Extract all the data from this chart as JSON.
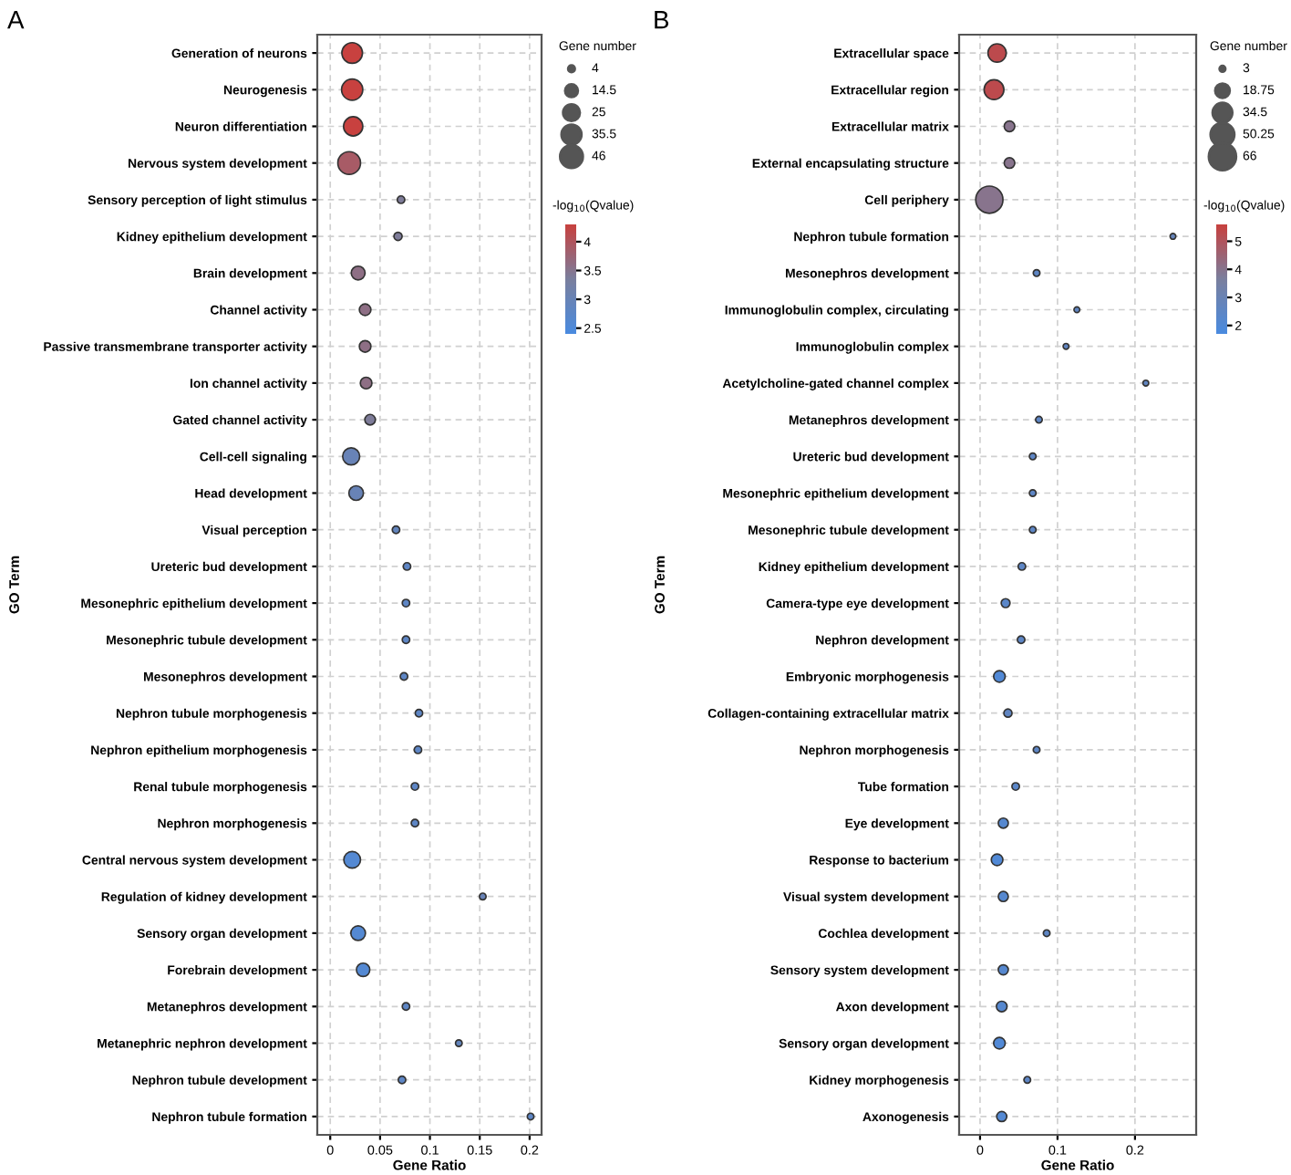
{
  "chart_data": [
    {
      "type": "bubble",
      "title": "A",
      "xlabel": "Gene Ratio",
      "ylabel": "GO Term",
      "legend_title": "Gene number",
      "clabel": "-log$_{10}$(Qvalue)",
      "orientation": "horizontal",
      "grid": true,
      "categories": [
        "Generation of neurons",
        "Neurogenesis",
        "Neuron differentiation",
        "Nervous system development",
        "Sensory perception of light stimulus",
        "Kidney epithelium development",
        "Brain development",
        "Channel activity",
        "Passive transmembrane transporter activity",
        "Ion channel activity",
        "Gated channel activity",
        "Cell-cell signaling",
        "Head development",
        "Visual perception",
        "Ureteric bud development",
        "Mesonephric epithelium development",
        "Mesonephric tubule development",
        "Mesonephros development",
        "Nephron tubule morphogenesis",
        "Nephron epithelium morphogenesis",
        "Renal tubule morphogenesis",
        "Nephron morphogenesis",
        "Central nervous system development",
        "Regulation of kidney development",
        "Sensory organ development",
        "Forebrain development",
        "Metanephros development",
        "Metanephric nephron development",
        "Nephron tubule development",
        "Nephron tubule formation"
      ],
      "series": [
        {
          "values": [
            0.022,
            0.022,
            0.023,
            0.019,
            0.071,
            0.068,
            0.028,
            0.035,
            0.035,
            0.036,
            0.04,
            0.021,
            0.026,
            0.066,
            0.077,
            0.076,
            0.076,
            0.074,
            0.089,
            0.088,
            0.085,
            0.085,
            0.022,
            0.153,
            0.028,
            0.033,
            0.076,
            0.129,
            0.072,
            0.201
          ],
          "sizes": [
            38,
            40,
            33,
            46,
            5,
            6,
            17,
            12,
            12,
            12,
            10,
            26,
            19,
            5,
            5,
            5,
            5,
            5,
            5,
            5,
            5,
            5,
            25,
            4,
            19,
            16,
            5,
            4,
            5,
            4
          ],
          "cvalues": [
            4.3,
            4.3,
            4.3,
            3.9,
            3.4,
            3.4,
            3.6,
            3.6,
            3.6,
            3.6,
            3.4,
            3.0,
            3.0,
            2.9,
            2.8,
            2.8,
            2.8,
            2.8,
            2.8,
            2.8,
            2.8,
            2.8,
            2.6,
            3.0,
            2.6,
            2.6,
            2.8,
            2.9,
            2.8,
            2.8
          ]
        }
      ],
      "xlim": [
        -0.013,
        0.212
      ],
      "xticks": [
        0,
        0.05,
        0.1,
        0.15,
        0.2
      ],
      "size_legend": [
        4,
        14.5,
        25,
        35.5,
        46
      ],
      "clim": [
        2.4,
        4.3
      ],
      "cticks": [
        2.5,
        3,
        3.5,
        4
      ]
    },
    {
      "type": "bubble",
      "title": "B",
      "xlabel": "Gene Ratio",
      "ylabel": "GO Term",
      "legend_title": "Gene number",
      "clabel": "-log$_{10}$(Qvalue)",
      "orientation": "horizontal",
      "grid": true,
      "categories": [
        "Extracellular space",
        "Extracellular region",
        "Extracellular matrix",
        "External encapsulating structure",
        "Cell periphery",
        "Nephron tubule formation",
        "Mesonephros development",
        "Immunoglobulin complex, circulating",
        "Immunoglobulin complex",
        "Acetylcholine-gated channel complex",
        "Metanephros development",
        "Ureteric bud development",
        "Mesonephric epithelium development",
        "Mesonephric tubule development",
        "Kidney epithelium development",
        "Camera-type eye development",
        "Nephron development",
        "Embryonic morphogenesis",
        "Collagen-containing extracellular matrix",
        "Nephron morphogenesis",
        "Tube formation",
        "Eye development",
        "Response to bacterium",
        "Visual system development",
        "Cochlea development",
        "Sensory system development",
        "Axon development",
        "Sensory organ development",
        "Kidney morphogenesis",
        "Axonogenesis"
      ],
      "series": [
        {
          "values": [
            0.022,
            0.018,
            0.038,
            0.038,
            0.012,
            0.249,
            0.073,
            0.125,
            0.111,
            0.214,
            0.076,
            0.068,
            0.068,
            0.068,
            0.054,
            0.033,
            0.053,
            0.025,
            0.036,
            0.073,
            0.046,
            0.03,
            0.022,
            0.03,
            0.086,
            0.03,
            0.028,
            0.025,
            0.061,
            0.028
          ],
          "sizes": [
            30,
            35,
            10,
            10,
            66,
            3,
            4,
            3,
            3,
            3,
            4,
            4,
            4,
            4,
            5,
            7,
            5,
            12,
            6,
            4,
            5,
            9,
            12,
            9,
            4,
            9,
            10,
            12,
            4,
            9
          ],
          "cvalues": [
            5.3,
            5.3,
            4.0,
            4.0,
            4.0,
            2.8,
            2.5,
            2.6,
            2.6,
            2.6,
            2.5,
            2.5,
            2.5,
            2.5,
            2.5,
            2.4,
            2.5,
            2.0,
            2.6,
            2.5,
            2.4,
            2.2,
            2.0,
            2.2,
            2.5,
            2.2,
            2.2,
            2.0,
            2.5,
            2.1
          ]
        }
      ],
      "xlim": [
        -0.027,
        0.279
      ],
      "xticks": [
        0,
        0.1,
        0.2
      ],
      "size_legend": [
        3,
        18.75,
        34.5,
        50.25,
        66
      ],
      "clim": [
        1.7,
        5.6
      ],
      "cticks": [
        2,
        3,
        4,
        5
      ]
    }
  ]
}
